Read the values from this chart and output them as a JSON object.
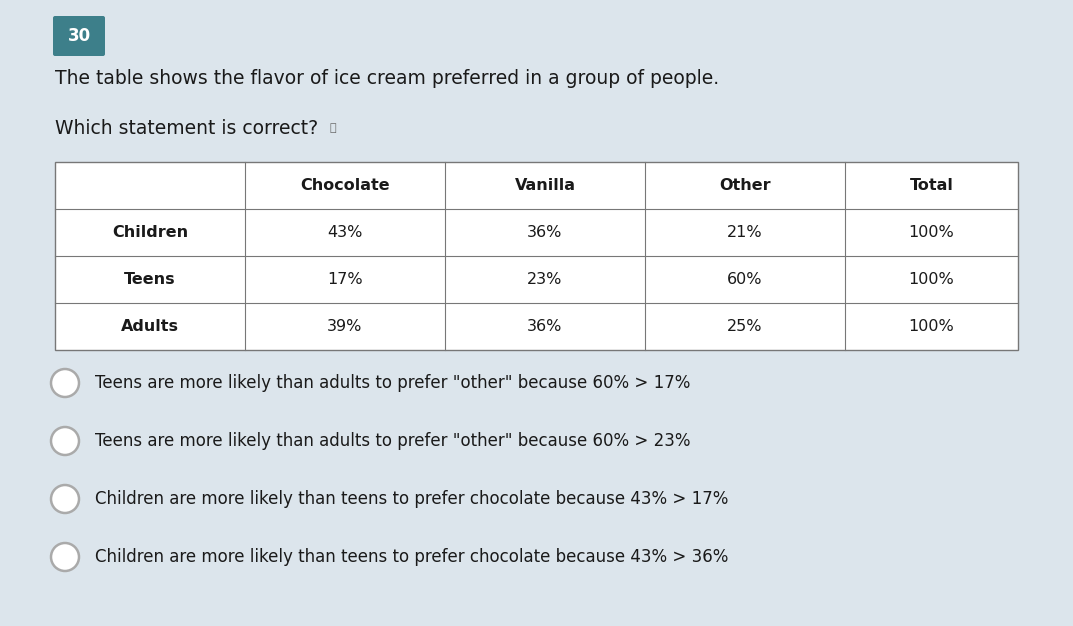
{
  "question_number": "30",
  "question_number_bg": "#3d7f8a",
  "background_color": "#dce5ec",
  "title_text": "The table shows the flavor of ice cream preferred in a group of people.",
  "subtitle_text": "Which statement is correct?",
  "table_headers": [
    "",
    "Chocolate",
    "Vanilla",
    "Other",
    "Total"
  ],
  "table_rows": [
    [
      "Children",
      "43%",
      "36%",
      "21%",
      "100%"
    ],
    [
      "Teens",
      "17%",
      "23%",
      "60%",
      "100%"
    ],
    [
      "Adults",
      "39%",
      "36%",
      "25%",
      "100%"
    ]
  ],
  "options": [
    "Teens are more likely than adults to prefer \"other\" because 60% > 17%",
    "Teens are more likely than adults to prefer \"other\" because 60% > 23%",
    "Children are more likely than teens to prefer chocolate because 43% > 17%",
    "Children are more likely than teens to prefer chocolate because 43% > 36%"
  ],
  "font_size_title": 13.5,
  "font_size_table_header": 11.5,
  "font_size_table_data": 11.5,
  "font_size_options": 12,
  "font_size_qnum": 12,
  "badge_color": "#3d7f8a",
  "text_color": "#1a1a1a",
  "table_line_color": "#777777",
  "option_circle_color": "#aaaaaa"
}
